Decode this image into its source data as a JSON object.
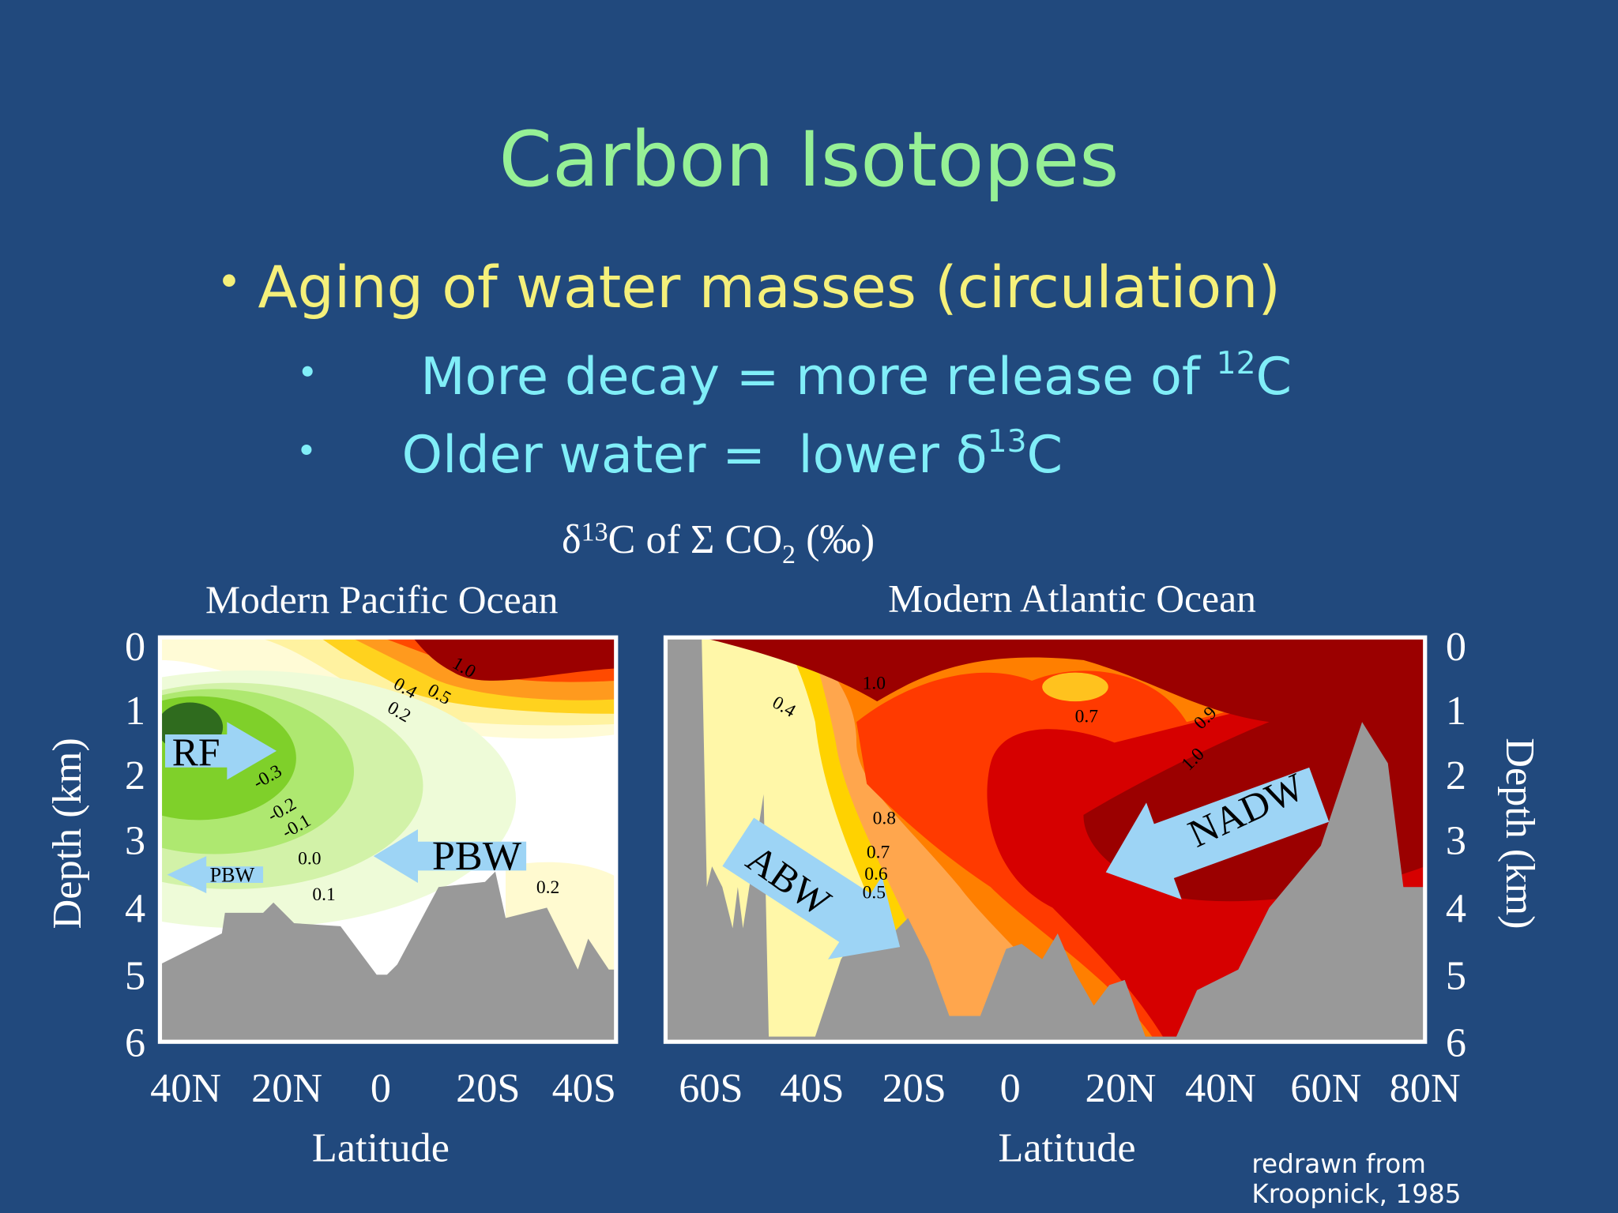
{
  "title": "Carbon Isotopes",
  "bullets": [
    "Aging of water masses (circulation)"
  ],
  "sub_bullets": [
    {
      "parts": [
        "More decay = more release of ",
        "12",
        "C"
      ]
    },
    {
      "parts": [
        "Older water =  lower δ",
        "13",
        "C"
      ]
    }
  ],
  "figure": {
    "title_parts": [
      "δ",
      "13",
      "C of Σ CO",
      "2",
      " (‰)"
    ],
    "depth_label": "Depth (km)",
    "depth_ticks": [
      0,
      1,
      2,
      3,
      4,
      5,
      6
    ],
    "latitude_label": "Latitude",
    "pacific": {
      "title": "Modern Pacific Ocean",
      "latitude_ticks": [
        "40N",
        "20N",
        "0",
        "20S",
        "40S"
      ],
      "contour_labels": [
        "1.0",
        "0.5",
        "0.4",
        "0.2",
        "-0.3",
        "-0.2",
        "-0.1",
        "0.0",
        "0.1",
        "0.2"
      ],
      "water_masses": [
        "RF",
        "PBW",
        "PBW"
      ]
    },
    "atlantic": {
      "title": "Modern Atlantic Ocean",
      "latitude_ticks": [
        "60S",
        "40S",
        "20S",
        "0",
        "20N",
        "40N",
        "60N",
        "80N"
      ],
      "contour_labels": [
        "1.0",
        "0.4",
        "0.7",
        "0.9",
        "1.0",
        "0.8",
        "0.7",
        "0.6",
        "0.5"
      ],
      "water_masses": [
        "ABW",
        "NADW"
      ]
    }
  },
  "credit": [
    "redrawn from",
    "Kroopnick, 1985"
  ]
}
